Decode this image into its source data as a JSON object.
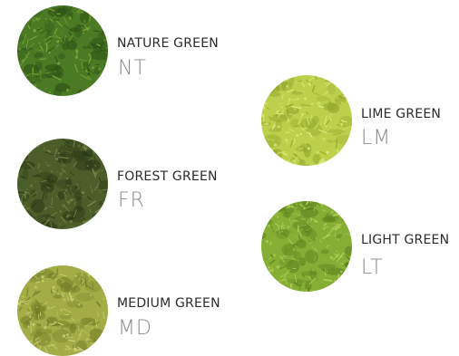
{
  "swatches": [
    {
      "name": "NATURE GREEN",
      "code": "NT",
      "colors": {
        "base": "#4b7a24",
        "light": "#7fab3e",
        "dark": "#2c4f14"
      }
    },
    {
      "name": "LIME GREEN",
      "code": "LM",
      "colors": {
        "base": "#bdd04c",
        "light": "#e0ec7e",
        "dark": "#8fa42c"
      }
    },
    {
      "name": "FOREST GREEN",
      "code": "FR",
      "colors": {
        "base": "#4b5e29",
        "light": "#76894a",
        "dark": "#2a3816"
      }
    },
    {
      "name": "LIGHT GREEN",
      "code": "LT",
      "colors": {
        "base": "#84ae34",
        "light": "#b8d35c",
        "dark": "#5a7f1d"
      }
    },
    {
      "name": "MEDIUM GREEN",
      "code": "MD",
      "colors": {
        "base": "#a3ac45",
        "light": "#ccd27a",
        "dark": "#6f7a26"
      }
    }
  ]
}
